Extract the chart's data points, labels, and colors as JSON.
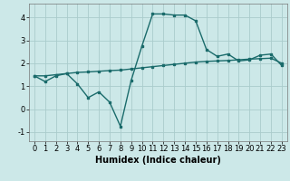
{
  "xlabel": "Humidex (Indice chaleur)",
  "background_color": "#cce8e8",
  "line_color": "#1a6b6b",
  "grid_color": "#aacccc",
  "xlim": [
    -0.5,
    23.5
  ],
  "ylim": [
    -1.4,
    4.6
  ],
  "yticks": [
    -1,
    0,
    1,
    2,
    3,
    4
  ],
  "xticks": [
    0,
    1,
    2,
    3,
    4,
    5,
    6,
    7,
    8,
    9,
    10,
    11,
    12,
    13,
    14,
    15,
    16,
    17,
    18,
    19,
    20,
    21,
    22,
    23
  ],
  "line1_x": [
    0,
    1,
    2,
    3,
    4,
    5,
    6,
    7,
    8,
    9,
    10,
    11,
    12,
    13,
    14,
    15,
    16,
    17,
    18,
    19,
    20,
    21,
    22,
    23
  ],
  "line1_y": [
    1.45,
    1.2,
    1.45,
    1.55,
    1.1,
    0.5,
    0.75,
    0.3,
    -0.75,
    1.25,
    2.75,
    4.15,
    4.15,
    4.1,
    4.1,
    3.85,
    2.6,
    2.3,
    2.4,
    2.1,
    2.15,
    2.35,
    2.4,
    1.9
  ],
  "line2_x": [
    0,
    1,
    2,
    3,
    4,
    5,
    6,
    7,
    8,
    9,
    10,
    11,
    12,
    13,
    14,
    15,
    16,
    17,
    18,
    19,
    20,
    21,
    22,
    23
  ],
  "line2_y": [
    1.45,
    1.45,
    1.5,
    1.55,
    1.6,
    1.62,
    1.65,
    1.68,
    1.7,
    1.75,
    1.8,
    1.85,
    1.9,
    1.95,
    2.0,
    2.05,
    2.08,
    2.1,
    2.12,
    2.15,
    2.18,
    2.2,
    2.22,
    2.0
  ],
  "fontsize_label": 7,
  "fontsize_tick": 6
}
